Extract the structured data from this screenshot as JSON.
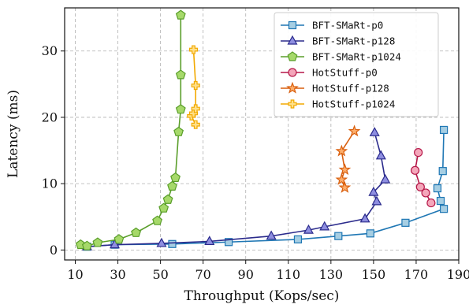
{
  "chart_data": {
    "type": "line",
    "xlabel": "Throughput (Kops/sec)",
    "ylabel": "Latency (ms)",
    "xlim": [
      5,
      190
    ],
    "ylim": [
      -1.5,
      36.5
    ],
    "xticks": [
      10,
      30,
      50,
      70,
      90,
      110,
      130,
      150,
      170,
      190
    ],
    "yticks": [
      0,
      10,
      20,
      30
    ],
    "grid": true,
    "legend_position": "top-right",
    "series": [
      {
        "name": "BFT-SMaRt-p0",
        "color": "#1f77b4",
        "fill": "#a6cee3",
        "marker": "square",
        "x": [
          15.5,
          28.5,
          55.5,
          82,
          114.5,
          133.5,
          148.5,
          165,
          183,
          181.5,
          180,
          182.5,
          183
        ],
        "y": [
          0.5,
          0.8,
          0.9,
          1.2,
          1.6,
          2.1,
          2.5,
          4.1,
          6.2,
          7.4,
          9.3,
          11.9,
          18.1
        ]
      },
      {
        "name": "BFT-SMaRt-p128",
        "color": "#2b2b8c",
        "fill": "#8e8ee0",
        "marker": "triangle",
        "x": [
          15.5,
          28.5,
          50.5,
          73,
          102,
          119.5,
          127,
          146,
          151.5,
          150,
          155.5,
          153.5,
          150.5
        ],
        "y": [
          0.5,
          0.8,
          1.0,
          1.3,
          2.1,
          3.0,
          3.5,
          4.7,
          7.3,
          8.7,
          10.6,
          14.2,
          17.7
        ]
      },
      {
        "name": "BFT-SMaRt-p1024",
        "color": "#5a9e2a",
        "fill": "#a6d96a",
        "marker": "pentagon",
        "x": [
          12.5,
          15.5,
          20.5,
          30.5,
          38.5,
          48.5,
          51.5,
          53.5,
          55.5,
          57,
          58.5,
          59.5,
          59.5,
          59.5
        ],
        "y": [
          0.8,
          0.6,
          1.1,
          1.6,
          2.6,
          4.4,
          6.3,
          7.6,
          9.6,
          10.9,
          17.8,
          21.2,
          26.4,
          35.4
        ]
      },
      {
        "name": "HotStuff-p0",
        "color": "#b51748",
        "fill": "#f4a6ba",
        "marker": "circle",
        "x": [
          177,
          174.5,
          172,
          169.5,
          171
        ],
        "y": [
          7.1,
          8.6,
          9.5,
          12.0,
          14.7
        ]
      },
      {
        "name": "HotStuff-p128",
        "color": "#d95f0e",
        "fill": "#fdae6b",
        "marker": "star",
        "x": [
          136.5,
          135,
          136.5,
          135,
          141
        ],
        "y": [
          9.4,
          10.6,
          12.1,
          14.9,
          17.9
        ]
      },
      {
        "name": "HotStuff-p1024",
        "color": "#f2a900",
        "fill": "#ffe08a",
        "marker": "plus",
        "x": [
          66.5,
          64.5,
          65.5,
          66.5,
          66.5,
          65.5
        ],
        "y": [
          18.9,
          20.2,
          20.6,
          21.3,
          24.8,
          30.2
        ]
      }
    ]
  }
}
